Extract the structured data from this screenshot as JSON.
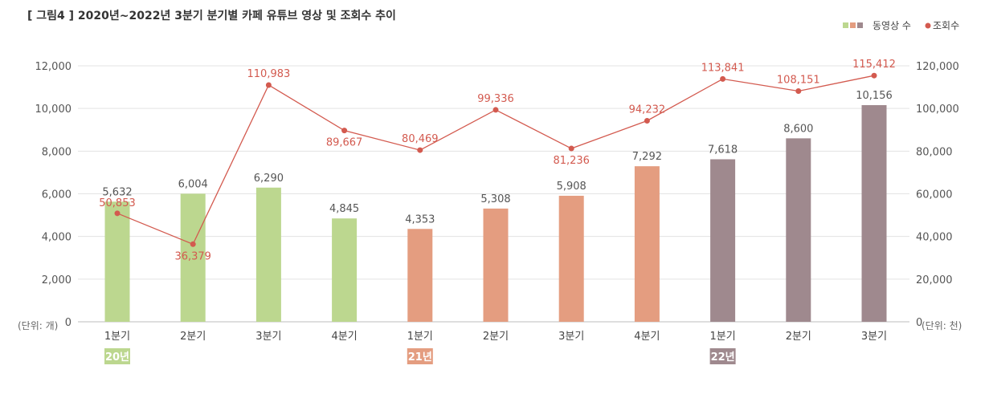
{
  "chart_data": {
    "type": "bar",
    "title": "[ 그림4 ] 2020년~2022년 3분기 분기별 카페 유튜브 영상 및 조회수 추이",
    "categories": [
      "1분기",
      "2분기",
      "3분기",
      "4분기",
      "1분기",
      "2분기",
      "3분기",
      "4분기",
      "1분기",
      "2분기",
      "3분기"
    ],
    "year_groups": [
      {
        "label": "20년",
        "color": "#bcd78f"
      },
      {
        "label": "21년",
        "color": "#e49d80"
      },
      {
        "label": "22년",
        "color": "#9f898e"
      }
    ],
    "bar_colors": [
      "#bcd78f",
      "#bcd78f",
      "#bcd78f",
      "#bcd78f",
      "#e49d80",
      "#e49d80",
      "#e49d80",
      "#e49d80",
      "#9f898e",
      "#9f898e",
      "#9f898e"
    ],
    "series": [
      {
        "name": "동영상 수",
        "type": "bar",
        "axis": "left",
        "values": [
          5632,
          6004,
          6290,
          4845,
          4353,
          5308,
          5908,
          7292,
          7618,
          8600,
          10156
        ],
        "labels": [
          "5,632",
          "6,004",
          "6,290",
          "4,845",
          "4,353",
          "5,308",
          "5,908",
          "7,292",
          "7,618",
          "8,600",
          "10,156"
        ]
      },
      {
        "name": "조회수",
        "type": "line",
        "axis": "right",
        "color": "#d35a4f",
        "values": [
          50853,
          36379,
          110983,
          89667,
          80469,
          99336,
          81236,
          94232,
          113841,
          108151,
          115412
        ],
        "labels": [
          "50,853",
          "36,379",
          "110,983",
          "89,667",
          "80,469",
          "99,336",
          "81,236",
          "94,232",
          "113,841",
          "108,151",
          "115,412"
        ]
      }
    ],
    "y_left": {
      "ylim": [
        0,
        12000
      ],
      "ticks": [
        "0",
        "2,000",
        "4,000",
        "6,000",
        "8,000",
        "10,000",
        "12,000"
      ],
      "unit": "(단위: 개)"
    },
    "y_right": {
      "ylim": [
        0,
        120000
      ],
      "ticks": [
        "0",
        "20,000",
        "40,000",
        "60,000",
        "80,000",
        "100,000",
        "120,000"
      ],
      "unit": "(단위: 천)"
    },
    "grid": true,
    "legend": {
      "position": "top-right",
      "items": [
        "동영상 수",
        "조회수"
      ]
    }
  }
}
